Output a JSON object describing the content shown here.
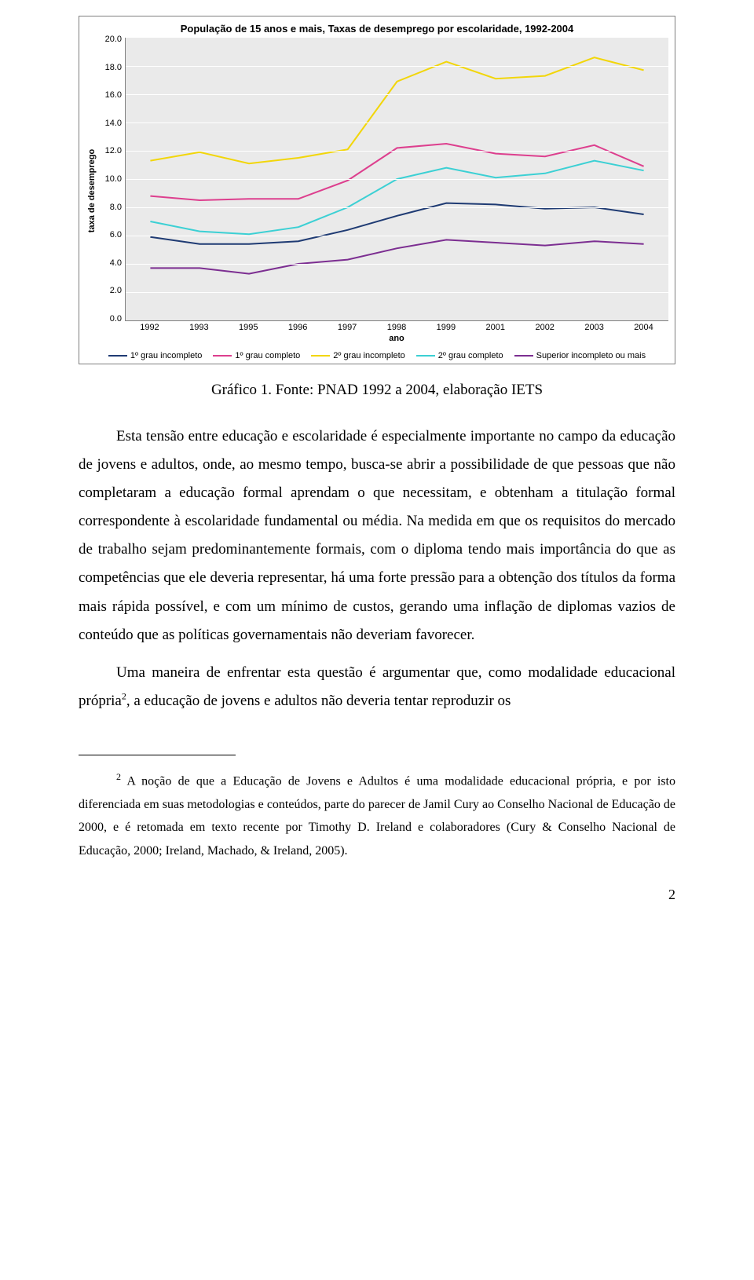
{
  "chart": {
    "type": "line",
    "title": "População de 15 anos e mais, Taxas de desemprego por escolaridade, 1992-2004",
    "title_fontsize": 13,
    "x_axis_label": "ano",
    "y_axis_label": "taxa de desemprego",
    "label_fontsize": 11,
    "categories": [
      "1992",
      "1993",
      "1995",
      "1996",
      "1997",
      "1998",
      "1999",
      "2001",
      "2002",
      "2003",
      "2004"
    ],
    "y_ticks": [
      "20.0",
      "18.0",
      "16.0",
      "14.0",
      "12.0",
      "10.0",
      "8.0",
      "6.0",
      "4.0",
      "2.0",
      "0.0"
    ],
    "ylim": [
      0,
      20
    ],
    "background_color": "#eaeaea",
    "grid_color": "#ffffff",
    "tick_fontsize": 11,
    "line_width": 2,
    "series": [
      {
        "name": "1º grau incompleto",
        "color": "#1f3b73",
        "values": [
          5.9,
          5.4,
          5.4,
          5.6,
          6.4,
          7.4,
          8.3,
          8.2,
          7.9,
          8.0,
          7.5
        ]
      },
      {
        "name": "1º grau completo",
        "color": "#dd3f8e",
        "values": [
          8.8,
          8.5,
          8.6,
          8.6,
          9.9,
          12.2,
          12.5,
          11.8,
          11.6,
          12.4,
          10.9
        ]
      },
      {
        "name": "2º grau incompleto",
        "color": "#f2d60a",
        "values": [
          11.3,
          11.9,
          11.1,
          11.5,
          12.1,
          16.9,
          18.3,
          17.1,
          17.3,
          18.6,
          17.7
        ]
      },
      {
        "name": "2º grau completo",
        "color": "#3cd0d4",
        "values": [
          7.0,
          6.3,
          6.1,
          6.6,
          8.0,
          10.0,
          10.8,
          10.1,
          10.4,
          11.3,
          10.6
        ]
      },
      {
        "name": "Superior incompleto ou mais",
        "color": "#7c2e91",
        "values": [
          3.7,
          3.7,
          3.3,
          4.0,
          4.3,
          5.1,
          5.7,
          5.5,
          5.3,
          5.6,
          5.4
        ]
      }
    ]
  },
  "caption": "Gráfico 1. Fonte: PNAD 1992 a 2004, elaboração IETS",
  "paragraphs": {
    "p1": "Esta tensão entre educação e escolaridade é especialmente importante no campo da educação de jovens e adultos, onde, ao mesmo tempo, busca-se abrir a possibilidade de que pessoas que não completaram a educação formal aprendam o que necessitam, e obtenham a titulação formal correspondente à escolaridade fundamental ou média. Na medida em que os requisitos do mercado de trabalho sejam predominantemente formais, com o diploma tendo mais importância do que as competências que ele deveria representar, há uma forte pressão para a obtenção dos títulos da forma mais rápida possível, e com um mínimo de custos, gerando uma inflação de diplomas vazios de conteúdo que as políticas governamentais não deveriam favorecer.",
    "p2_pre": "Uma maneira de enfrentar esta questão é argumentar que, como modalidade educacional própria",
    "p2_sup": "2",
    "p2_post": ", a educação de jovens e adultos não deveria tentar reproduzir os"
  },
  "footnote": {
    "num": "2",
    "text": " A noção de que a Educação de Jovens e Adultos é uma modalidade educacional própria, e por isto diferenciada em suas metodologias e conteúdos, parte do parecer de Jamil Cury ao Conselho Nacional de Educação de 2000, e é retomada em texto recente por Timothy D. Ireland e colaboradores (Cury & Conselho Nacional de Educação, 2000; Ireland, Machado, & Ireland, 2005)."
  },
  "page_number": "2"
}
